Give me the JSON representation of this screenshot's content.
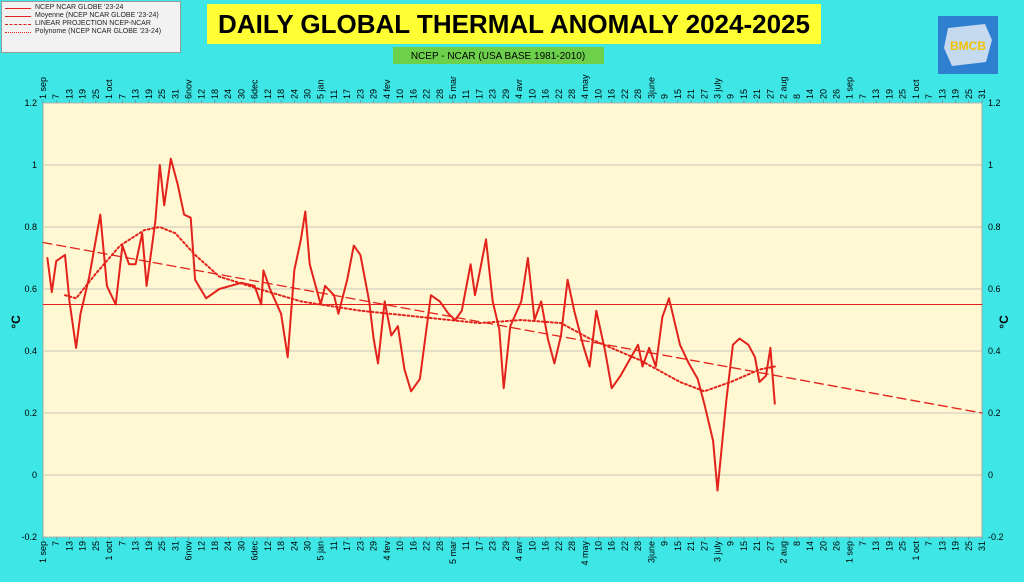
{
  "chart_data": {
    "type": "line",
    "title": "DAILY GLOBAL THERMAL ANOMALY 2024-2025",
    "subtitle": "NCEP - NCAR  (USA BASE 1981-2010)",
    "logo_text": "BMCB",
    "ylabel": "°C",
    "ylim": [
      -0.2,
      1.2
    ],
    "yticks": [
      1.2,
      1,
      0.8,
      0.6,
      0.4,
      0.2,
      0,
      -0.2
    ],
    "xlim": [
      0,
      426
    ],
    "xticks": [
      {
        "value": 0,
        "label": "1 sep"
      },
      {
        "value": 6,
        "label": "7"
      },
      {
        "value": 12,
        "label": "13"
      },
      {
        "value": 18,
        "label": "19"
      },
      {
        "value": 24,
        "label": "25"
      },
      {
        "value": 30,
        "label": "1 oct"
      },
      {
        "value": 36,
        "label": "7"
      },
      {
        "value": 42,
        "label": "13"
      },
      {
        "value": 48,
        "label": "19"
      },
      {
        "value": 54,
        "label": "25"
      },
      {
        "value": 60,
        "label": "31"
      },
      {
        "value": 66,
        "label": "6nov"
      },
      {
        "value": 72,
        "label": "12"
      },
      {
        "value": 78,
        "label": "18"
      },
      {
        "value": 84,
        "label": "24"
      },
      {
        "value": 90,
        "label": "30"
      },
      {
        "value": 96,
        "label": "6dec"
      },
      {
        "value": 102,
        "label": "12"
      },
      {
        "value": 108,
        "label": "18"
      },
      {
        "value": 114,
        "label": "24"
      },
      {
        "value": 120,
        "label": "30"
      },
      {
        "value": 126,
        "label": "5 jan"
      },
      {
        "value": 132,
        "label": "11"
      },
      {
        "value": 138,
        "label": "17"
      },
      {
        "value": 144,
        "label": "23"
      },
      {
        "value": 150,
        "label": "29"
      },
      {
        "value": 156,
        "label": "4 fev"
      },
      {
        "value": 162,
        "label": "10"
      },
      {
        "value": 168,
        "label": "16"
      },
      {
        "value": 174,
        "label": "22"
      },
      {
        "value": 180,
        "label": "28"
      },
      {
        "value": 186,
        "label": "5 mar"
      },
      {
        "value": 192,
        "label": "11"
      },
      {
        "value": 198,
        "label": "17"
      },
      {
        "value": 204,
        "label": "23"
      },
      {
        "value": 210,
        "label": "29"
      },
      {
        "value": 216,
        "label": "4 avr"
      },
      {
        "value": 222,
        "label": "10"
      },
      {
        "value": 228,
        "label": "16"
      },
      {
        "value": 234,
        "label": "22"
      },
      {
        "value": 240,
        "label": "28"
      },
      {
        "value": 246,
        "label": "4 may"
      },
      {
        "value": 252,
        "label": "10"
      },
      {
        "value": 258,
        "label": "16"
      },
      {
        "value": 264,
        "label": "22"
      },
      {
        "value": 270,
        "label": "28"
      },
      {
        "value": 276,
        "label": "3june"
      },
      {
        "value": 282,
        "label": "9"
      },
      {
        "value": 288,
        "label": "15"
      },
      {
        "value": 294,
        "label": "21"
      },
      {
        "value": 300,
        "label": "27"
      },
      {
        "value": 306,
        "label": "3 july"
      },
      {
        "value": 312,
        "label": "9"
      },
      {
        "value": 318,
        "label": "15"
      },
      {
        "value": 324,
        "label": "21"
      },
      {
        "value": 330,
        "label": "27"
      },
      {
        "value": 336,
        "label": "2 aug"
      },
      {
        "value": 342,
        "label": "8"
      },
      {
        "value": 348,
        "label": "14"
      },
      {
        "value": 354,
        "label": "20"
      },
      {
        "value": 360,
        "label": "26"
      },
      {
        "value": 366,
        "label": "1 sep"
      },
      {
        "value": 372,
        "label": "7"
      },
      {
        "value": 378,
        "label": "13"
      },
      {
        "value": 384,
        "label": "19"
      },
      {
        "value": 390,
        "label": "25"
      },
      {
        "value": 396,
        "label": "1 oct"
      },
      {
        "value": 402,
        "label": "7"
      },
      {
        "value": 408,
        "label": "13"
      },
      {
        "value": 414,
        "label": "19"
      },
      {
        "value": 420,
        "label": "25"
      },
      {
        "value": 426,
        "label": "31"
      }
    ],
    "grid": true,
    "legend": "top-left",
    "series": [
      {
        "name": "NCEP NCAR GLOBE '23-24",
        "color": "#e3221c",
        "style": "solid",
        "width": 2,
        "x": [
          2,
          4,
          6,
          10,
          12,
          15,
          17,
          21,
          26,
          29,
          33,
          36,
          39,
          42,
          45,
          47,
          51,
          53,
          55,
          58,
          61,
          64,
          67,
          69,
          74,
          80,
          90,
          96,
          99,
          100,
          103,
          108,
          111,
          114,
          117,
          119,
          121,
          126,
          128,
          132,
          134,
          138,
          141,
          144,
          148,
          150,
          152,
          155,
          158,
          161,
          164,
          167,
          171,
          176,
          180,
          184,
          187,
          190,
          194,
          196,
          198,
          201,
          204,
          207,
          209,
          212,
          217,
          220,
          223,
          226,
          229,
          232,
          235,
          238,
          241,
          245,
          248,
          251,
          255,
          258,
          262,
          266,
          270,
          272,
          275,
          278,
          281,
          284,
          287,
          289,
          293,
          297,
          300,
          304,
          306,
          310,
          313,
          316,
          320,
          323,
          325,
          328,
          330,
          332
        ],
        "values": [
          0.7,
          0.59,
          0.69,
          0.71,
          0.56,
          0.41,
          0.52,
          0.64,
          0.84,
          0.61,
          0.55,
          0.74,
          0.68,
          0.68,
          0.78,
          0.61,
          0.82,
          1.0,
          0.87,
          1.02,
          0.94,
          0.84,
          0.83,
          0.63,
          0.57,
          0.6,
          0.62,
          0.61,
          0.55,
          0.66,
          0.6,
          0.52,
          0.38,
          0.66,
          0.76,
          0.85,
          0.68,
          0.55,
          0.61,
          0.58,
          0.52,
          0.63,
          0.74,
          0.71,
          0.56,
          0.44,
          0.36,
          0.56,
          0.45,
          0.48,
          0.34,
          0.27,
          0.31,
          0.58,
          0.56,
          0.52,
          0.5,
          0.53,
          0.68,
          0.58,
          0.65,
          0.76,
          0.56,
          0.47,
          0.28,
          0.48,
          0.56,
          0.7,
          0.5,
          0.56,
          0.44,
          0.36,
          0.45,
          0.63,
          0.53,
          0.42,
          0.35,
          0.53,
          0.4,
          0.28,
          0.32,
          0.37,
          0.42,
          0.35,
          0.41,
          0.35,
          0.51,
          0.57,
          0.48,
          0.42,
          0.36,
          0.31,
          0.23,
          0.11,
          -0.05,
          0.24,
          0.42,
          0.44,
          0.42,
          0.38,
          0.3,
          0.32,
          0.41,
          0.23
        ]
      },
      {
        "name": "Moyenne (NCEP NCAR GLOBE '23-24)",
        "color": "#e3221c",
        "style": "solid",
        "width": 1,
        "x": [
          0,
          426
        ],
        "values": [
          0.55,
          0.55
        ]
      },
      {
        "name": "LINEAR PROJECTION NCEP-NCAR",
        "color": "#e3221c",
        "style": "dashed",
        "width": 1.3,
        "x": [
          0,
          426
        ],
        "values": [
          0.75,
          0.2
        ]
      },
      {
        "name": "Polynome (NCEP NCAR GLOBE '23-24)",
        "color": "#e3221c",
        "style": "dotted",
        "width": 2,
        "x": [
          10,
          15,
          24,
          35,
          46,
          53,
          60,
          69,
          80,
          98,
          117,
          144,
          171,
          198,
          217,
          235,
          248,
          271,
          289,
          300,
          312,
          325,
          332
        ],
        "values": [
          0.58,
          0.57,
          0.65,
          0.74,
          0.79,
          0.8,
          0.78,
          0.71,
          0.64,
          0.6,
          0.56,
          0.53,
          0.51,
          0.49,
          0.5,
          0.49,
          0.44,
          0.37,
          0.3,
          0.27,
          0.3,
          0.34,
          0.35
        ]
      }
    ]
  }
}
